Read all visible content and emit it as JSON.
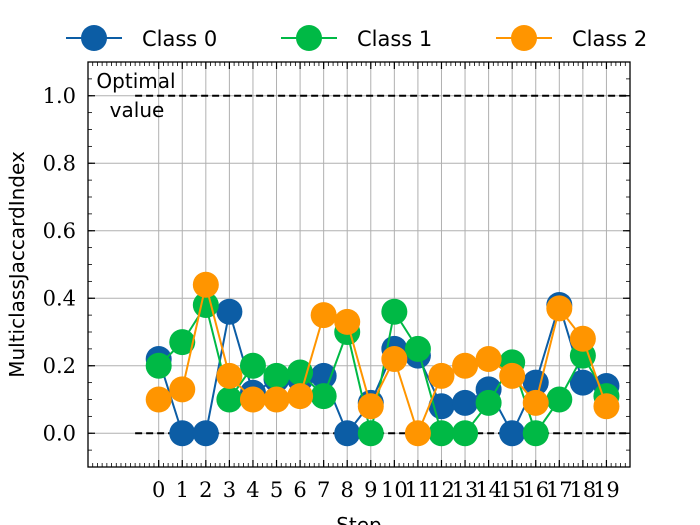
{
  "chart_data": {
    "type": "line",
    "title": "",
    "xlabel": "Step",
    "ylabel": "MulticlassJaccardIndex",
    "x": [
      0,
      1,
      2,
      3,
      4,
      5,
      6,
      7,
      8,
      9,
      10,
      11,
      12,
      13,
      14,
      15,
      16,
      17,
      18,
      19
    ],
    "x_tick_labels": [
      "0",
      "1",
      "2",
      "3",
      "4",
      "5",
      "6",
      "7",
      "8",
      "9",
      "10",
      "11",
      "12",
      "13",
      "14",
      "15",
      "16",
      "17",
      "18",
      "19"
    ],
    "xlim": [
      -3,
      20
    ],
    "ylim": [
      -0.1,
      1.1
    ],
    "y_ticks": [
      0.0,
      0.2,
      0.4,
      0.6,
      0.8,
      1.0
    ],
    "y_tick_labels": [
      "0.0",
      "0.2",
      "0.4",
      "0.6",
      "0.8",
      "1.0"
    ],
    "grid": true,
    "legend_position": "top, outside, horizontal",
    "series": [
      {
        "name": "Class 0",
        "color": "#0c5da5",
        "values": [
          0.22,
          0.0,
          0.0,
          0.36,
          0.12,
          0.16,
          0.16,
          0.17,
          0.0,
          0.09,
          0.25,
          0.23,
          0.08,
          0.09,
          0.13,
          0.0,
          0.15,
          0.38,
          0.15,
          0.14
        ]
      },
      {
        "name": "Class 1",
        "color": "#00b945",
        "values": [
          0.2,
          0.27,
          0.38,
          0.1,
          0.2,
          0.17,
          0.18,
          0.11,
          0.3,
          0.0,
          0.36,
          0.25,
          0.0,
          0.0,
          0.09,
          0.21,
          0.0,
          0.1,
          0.23,
          0.11
        ]
      },
      {
        "name": "Class 2",
        "color": "#ff9500",
        "values": [
          0.1,
          0.13,
          0.44,
          0.17,
          0.1,
          0.1,
          0.11,
          0.35,
          0.33,
          0.08,
          0.22,
          0.0,
          0.17,
          0.2,
          0.22,
          0.17,
          0.09,
          0.37,
          0.28,
          0.08
        ]
      }
    ],
    "reference_lines": [
      {
        "y": 1.0,
        "style": "dashed",
        "color": "#000000"
      },
      {
        "y": 0.0,
        "style": "dashed",
        "color": "#000000"
      }
    ],
    "annotations": [
      {
        "text_lines": [
          "Optimal",
          "value"
        ],
        "near": "top-left"
      }
    ]
  }
}
